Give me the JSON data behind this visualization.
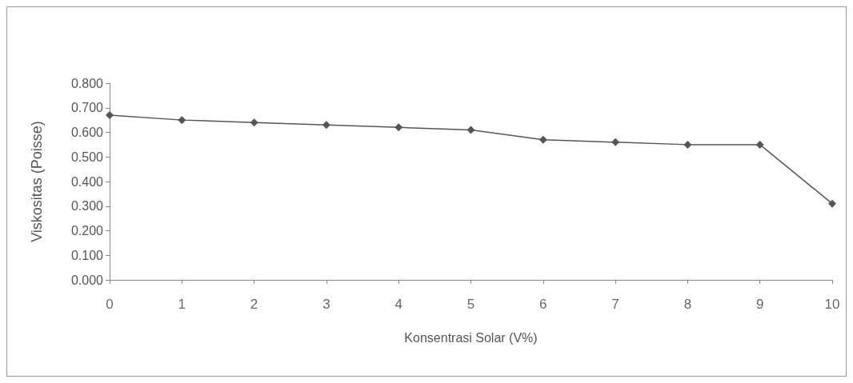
{
  "chart_data": {
    "type": "line",
    "xlabel": "Konsentrasi Solar (V%)",
    "ylabel": "Viskositas (Poisse)",
    "categories": [
      "0",
      "1",
      "2",
      "3",
      "4",
      "5",
      "6",
      "7",
      "8",
      "9",
      "10"
    ],
    "series": [
      {
        "color": "#555555",
        "values": [
          0.67,
          0.65,
          0.64,
          0.63,
          0.62,
          0.61,
          0.57,
          0.56,
          0.55,
          0.55,
          0.31
        ]
      }
    ],
    "ylim": [
      0,
      0.8
    ],
    "yticks": [
      {
        "value": 0,
        "label": "0.000"
      },
      {
        "value": 0.1,
        "label": "0.100"
      },
      {
        "value": 0.2,
        "label": "0.200"
      },
      {
        "value": 0.3,
        "label": "0.300"
      },
      {
        "value": 0.4,
        "label": "0.400"
      },
      {
        "value": 0.5,
        "label": "0.500"
      },
      {
        "value": 0.6,
        "label": "0.600"
      },
      {
        "value": 0.7,
        "label": "0.700"
      },
      {
        "value": 0.8,
        "label": "0.800"
      }
    ],
    "grid": false,
    "marker": "diamond",
    "line_style": "solid"
  }
}
